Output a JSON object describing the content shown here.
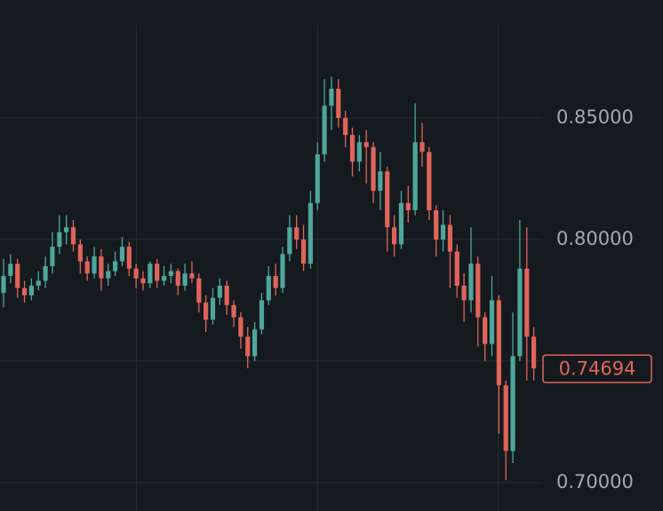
{
  "chart_data": {
    "type": "candlestick",
    "ylim": [
      0.6883,
      0.8985
    ],
    "yticks": [
      {
        "value": 0.7,
        "label": "0.70000"
      },
      {
        "value": 0.75,
        "label": null
      },
      {
        "value": 0.8,
        "label": "0.80000"
      },
      {
        "value": 0.85,
        "label": "0.85000"
      }
    ],
    "grid": true,
    "up_color": "#4fa69a",
    "down_color": "#e0645a",
    "last_price": {
      "value": 0.74694,
      "label": "0.74694"
    },
    "open": [
      0.778,
      0.785,
      0.79,
      0.78,
      0.777,
      0.781,
      0.783,
      0.789,
      0.797,
      0.803,
      0.805,
      0.798,
      0.791,
      0.786,
      0.793,
      0.784,
      0.787,
      0.791,
      0.797,
      0.788,
      0.784,
      0.782,
      0.79,
      0.783,
      0.785,
      0.787,
      0.781,
      0.786,
      0.784,
      0.774,
      0.767,
      0.776,
      0.781,
      0.773,
      0.768,
      0.76,
      0.752,
      0.763,
      0.775,
      0.785,
      0.78,
      0.794,
      0.805,
      0.8,
      0.79,
      0.815,
      0.835,
      0.855,
      0.862,
      0.85,
      0.843,
      0.832,
      0.84,
      0.838,
      0.82,
      0.828,
      0.805,
      0.798,
      0.815,
      0.812,
      0.84,
      0.836,
      0.812,
      0.8,
      0.806,
      0.795,
      0.781,
      0.775,
      0.79,
      0.768,
      0.757,
      0.775,
      0.74,
      0.713,
      0.752,
      0.788,
      0.76
    ],
    "high": [
      0.792,
      0.794,
      0.792,
      0.783,
      0.784,
      0.787,
      0.793,
      0.803,
      0.81,
      0.81,
      0.808,
      0.8,
      0.793,
      0.797,
      0.796,
      0.79,
      0.795,
      0.801,
      0.799,
      0.79,
      0.787,
      0.791,
      0.792,
      0.789,
      0.79,
      0.788,
      0.79,
      0.791,
      0.786,
      0.777,
      0.78,
      0.784,
      0.783,
      0.775,
      0.77,
      0.764,
      0.766,
      0.778,
      0.789,
      0.79,
      0.797,
      0.81,
      0.81,
      0.806,
      0.82,
      0.84,
      0.866,
      0.867,
      0.866,
      0.853,
      0.846,
      0.843,
      0.845,
      0.84,
      0.836,
      0.83,
      0.81,
      0.82,
      0.822,
      0.856,
      0.848,
      0.838,
      0.814,
      0.812,
      0.81,
      0.798,
      0.786,
      0.805,
      0.793,
      0.77,
      0.785,
      0.777,
      0.742,
      0.77,
      0.808,
      0.805,
      0.764
    ],
    "low": [
      0.772,
      0.782,
      0.776,
      0.774,
      0.775,
      0.779,
      0.78,
      0.786,
      0.794,
      0.798,
      0.795,
      0.786,
      0.783,
      0.784,
      0.779,
      0.781,
      0.785,
      0.789,
      0.785,
      0.78,
      0.779,
      0.78,
      0.78,
      0.781,
      0.782,
      0.777,
      0.779,
      0.782,
      0.77,
      0.762,
      0.765,
      0.773,
      0.769,
      0.764,
      0.755,
      0.747,
      0.75,
      0.761,
      0.773,
      0.777,
      0.778,
      0.791,
      0.796,
      0.787,
      0.788,
      0.812,
      0.832,
      0.845,
      0.846,
      0.838,
      0.826,
      0.828,
      0.823,
      0.815,
      0.812,
      0.795,
      0.793,
      0.796,
      0.807,
      0.81,
      0.83,
      0.808,
      0.793,
      0.795,
      0.78,
      0.776,
      0.766,
      0.77,
      0.756,
      0.75,
      0.752,
      0.72,
      0.701,
      0.708,
      0.75,
      0.742,
      0.742
    ],
    "close": [
      0.785,
      0.79,
      0.78,
      0.777,
      0.781,
      0.783,
      0.789,
      0.797,
      0.803,
      0.805,
      0.798,
      0.791,
      0.786,
      0.793,
      0.784,
      0.787,
      0.791,
      0.797,
      0.788,
      0.784,
      0.782,
      0.79,
      0.783,
      0.785,
      0.787,
      0.781,
      0.786,
      0.784,
      0.774,
      0.767,
      0.776,
      0.781,
      0.773,
      0.768,
      0.76,
      0.752,
      0.763,
      0.775,
      0.785,
      0.78,
      0.794,
      0.805,
      0.8,
      0.79,
      0.815,
      0.835,
      0.855,
      0.862,
      0.85,
      0.843,
      0.832,
      0.84,
      0.838,
      0.82,
      0.828,
      0.805,
      0.798,
      0.815,
      0.812,
      0.84,
      0.836,
      0.812,
      0.8,
      0.806,
      0.795,
      0.781,
      0.775,
      0.79,
      0.768,
      0.757,
      0.775,
      0.74,
      0.713,
      0.752,
      0.788,
      0.76,
      0.74694
    ]
  }
}
